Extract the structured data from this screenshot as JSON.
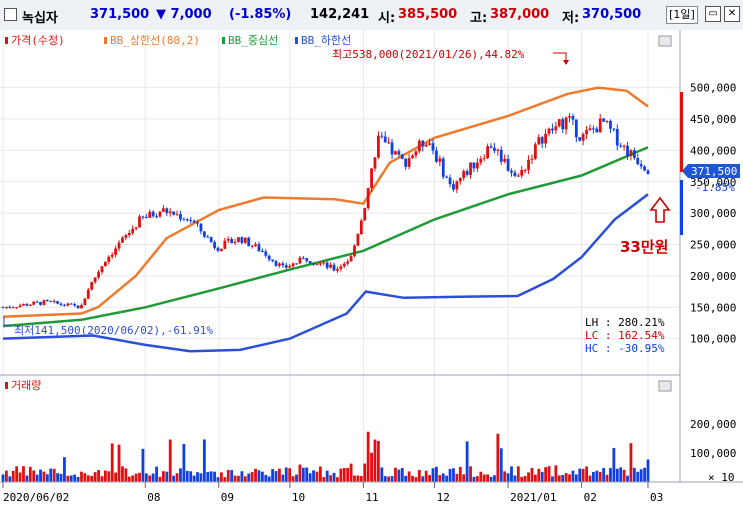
{
  "header": {
    "name": "녹십자",
    "price": "371,500",
    "change": "▼ 7,000",
    "change_pct": "(-1.85%)",
    "volume": "142,241",
    "open_label": "시:",
    "open": "385,500",
    "high_label": "고:",
    "high": "387,000",
    "low_label": "저:",
    "low": "370,500",
    "period": "[1일]",
    "colors": {
      "down": "#0000cc",
      "up": "#cc0000"
    }
  },
  "legend": {
    "price": "가격(수정)",
    "upper": "BB_상한선(80,2)",
    "middle": "BB_중심선",
    "lower": "BB_하한선"
  },
  "annotations": {
    "high": "최고538,000(2021/01/26),44.82%",
    "low": "최저141,500(2020/06/02),-61.91%",
    "target": "33만원",
    "current_price": "371,500",
    "current_pct": "-1.85%"
  },
  "stats": {
    "lh": "LH : 280.21%",
    "lc": "LC : 162.54%",
    "hc": "HC : -30.95%"
  },
  "volume_panel": {
    "title": "거래량",
    "ticks": [
      "200,000",
      "100,000"
    ],
    "unit": "× 10"
  },
  "chart_data": {
    "type": "candlestick",
    "ylim": [
      50000,
      560000
    ],
    "yticks": [
      "500,000",
      "450,000",
      "400,000",
      "350,000",
      "300,000",
      "250,000",
      "200,000",
      "150,000",
      "100,000"
    ],
    "ytick_values": [
      500000,
      450000,
      400000,
      350000,
      300000,
      250000,
      200000,
      150000,
      100000
    ],
    "xticks": [
      "2020/06/02",
      "08",
      "09",
      "10",
      "11",
      "12",
      "2021/01",
      "02",
      "03"
    ],
    "xtick_dates": [
      "2020-06-02",
      "2020-08-01",
      "2020-09-01",
      "2020-10-01",
      "2020-11-01",
      "2020-12-01",
      "2021-01-01",
      "2021-02-01",
      "2021-03-01"
    ],
    "x_range": [
      "2020-06-02",
      "2021-03-01"
    ],
    "close": [
      {
        "date": "2020-06-02",
        "value": 150000
      },
      {
        "date": "2020-06-20",
        "value": 158000
      },
      {
        "date": "2020-07-05",
        "value": 150000
      },
      {
        "date": "2020-07-08",
        "value": 180000
      },
      {
        "date": "2020-07-15",
        "value": 225000
      },
      {
        "date": "2020-07-22",
        "value": 255000
      },
      {
        "date": "2020-07-30",
        "value": 290000
      },
      {
        "date": "2020-08-08",
        "value": 305000
      },
      {
        "date": "2020-08-20",
        "value": 290000
      },
      {
        "date": "2020-08-31",
        "value": 245000
      },
      {
        "date": "2020-09-10",
        "value": 260000
      },
      {
        "date": "2020-09-20",
        "value": 238000
      },
      {
        "date": "2020-09-28",
        "value": 212000
      },
      {
        "date": "2020-10-08",
        "value": 228000
      },
      {
        "date": "2020-10-20",
        "value": 210000
      },
      {
        "date": "2020-10-27",
        "value": 230000
      },
      {
        "date": "2020-11-02",
        "value": 320000
      },
      {
        "date": "2020-11-07",
        "value": 420000
      },
      {
        "date": "2020-11-18",
        "value": 380000
      },
      {
        "date": "2020-11-28",
        "value": 420000
      },
      {
        "date": "2020-12-08",
        "value": 340000
      },
      {
        "date": "2020-12-18",
        "value": 380000
      },
      {
        "date": "2020-12-25",
        "value": 410000
      },
      {
        "date": "2021-01-05",
        "value": 355000
      },
      {
        "date": "2021-01-15",
        "value": 420000
      },
      {
        "date": "2021-01-26",
        "value": 450000
      },
      {
        "date": "2021-02-01",
        "value": 420000
      },
      {
        "date": "2021-02-10",
        "value": 445000
      },
      {
        "date": "2021-02-20",
        "value": 400000
      },
      {
        "date": "2021-03-01",
        "value": 371500
      }
    ],
    "bb_upper": [
      {
        "date": "2020-06-02",
        "value": 135000
      },
      {
        "date": "2020-07-05",
        "value": 140000
      },
      {
        "date": "2020-07-12",
        "value": 150000
      },
      {
        "date": "2020-07-28",
        "value": 200000
      },
      {
        "date": "2020-08-10",
        "value": 260000
      },
      {
        "date": "2020-09-01",
        "value": 305000
      },
      {
        "date": "2020-09-20",
        "value": 325000
      },
      {
        "date": "2020-10-20",
        "value": 322000
      },
      {
        "date": "2020-11-01",
        "value": 315000
      },
      {
        "date": "2020-11-12",
        "value": 380000
      },
      {
        "date": "2020-12-01",
        "value": 420000
      },
      {
        "date": "2021-01-01",
        "value": 455000
      },
      {
        "date": "2021-01-26",
        "value": 490000
      },
      {
        "date": "2021-02-08",
        "value": 500000
      },
      {
        "date": "2021-02-20",
        "value": 495000
      },
      {
        "date": "2021-03-01",
        "value": 470000
      }
    ],
    "bb_middle": [
      {
        "date": "2020-06-02",
        "value": 120000
      },
      {
        "date": "2020-07-05",
        "value": 130000
      },
      {
        "date": "2020-08-01",
        "value": 150000
      },
      {
        "date": "2020-09-01",
        "value": 180000
      },
      {
        "date": "2020-10-01",
        "value": 210000
      },
      {
        "date": "2020-11-01",
        "value": 240000
      },
      {
        "date": "2020-12-01",
        "value": 290000
      },
      {
        "date": "2021-01-01",
        "value": 330000
      },
      {
        "date": "2021-02-01",
        "value": 360000
      },
      {
        "date": "2021-03-01",
        "value": 405000
      }
    ],
    "bb_lower": [
      {
        "date": "2020-06-02",
        "value": 100000
      },
      {
        "date": "2020-07-10",
        "value": 105000
      },
      {
        "date": "2020-08-01",
        "value": 90000
      },
      {
        "date": "2020-08-20",
        "value": 80000
      },
      {
        "date": "2020-09-10",
        "value": 82000
      },
      {
        "date": "2020-10-01",
        "value": 100000
      },
      {
        "date": "2020-10-25",
        "value": 140000
      },
      {
        "date": "2020-11-02",
        "value": 175000
      },
      {
        "date": "2020-11-18",
        "value": 165000
      },
      {
        "date": "2020-12-15",
        "value": 167000
      },
      {
        "date": "2021-01-05",
        "value": 168000
      },
      {
        "date": "2021-01-20",
        "value": 195000
      },
      {
        "date": "2021-02-01",
        "value": 230000
      },
      {
        "date": "2021-02-15",
        "value": 290000
      },
      {
        "date": "2021-03-01",
        "value": 330000
      }
    ],
    "volume": {
      "ylim": [
        0,
        300000
      ]
    },
    "series_colors": {
      "upper": "#f07a2c",
      "middle": "#1f9a37",
      "lower": "#2c4fd7",
      "up": "#e01010",
      "down": "#1040e0"
    }
  }
}
